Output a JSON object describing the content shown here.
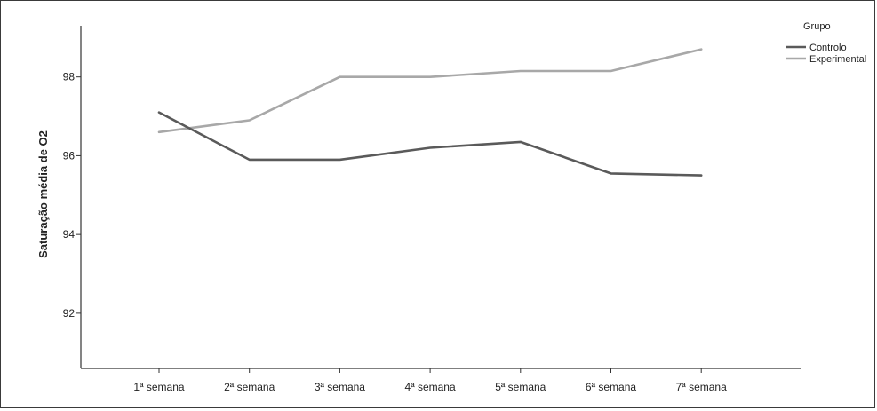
{
  "chart_data": {
    "type": "line",
    "title": "",
    "xlabel": "",
    "ylabel": "Saturação média de O2",
    "categories": [
      "1ª semana",
      "2ª semana",
      "3ª semana",
      "4ª semana",
      "5ª semana",
      "6ª semana",
      "7ª semana"
    ],
    "series": [
      {
        "name": "Controlo",
        "color": "#5a5a5a",
        "values": [
          97.1,
          95.9,
          95.9,
          96.2,
          96.35,
          95.55,
          95.5
        ]
      },
      {
        "name": "Experimental",
        "color": "#a8a8a8",
        "values": [
          96.6,
          96.9,
          98.0,
          98.0,
          98.15,
          98.15,
          98.7
        ]
      }
    ],
    "yticks": [
      92,
      94,
      96,
      98
    ],
    "ylim": [
      90.6,
      99.3
    ],
    "grid": false,
    "legend": {
      "title": "Grupo",
      "placement": "top-right"
    }
  }
}
